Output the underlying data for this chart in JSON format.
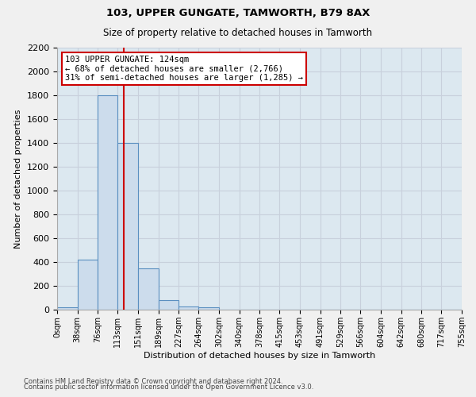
{
  "title1": "103, UPPER GUNGATE, TAMWORTH, B79 8AX",
  "title2": "Size of property relative to detached houses in Tamworth",
  "xlabel": "Distribution of detached houses by size in Tamworth",
  "ylabel": "Number of detached properties",
  "footnote1": "Contains HM Land Registry data © Crown copyright and database right 2024.",
  "footnote2": "Contains public sector information licensed under the Open Government Licence v3.0.",
  "bin_edges": [
    0,
    38,
    76,
    113,
    151,
    189,
    227,
    264,
    302,
    340,
    378,
    415,
    453,
    491,
    529,
    566,
    604,
    642,
    680,
    717,
    755
  ],
  "bar_heights": [
    20,
    420,
    1800,
    1400,
    350,
    80,
    30,
    20,
    0,
    0,
    0,
    0,
    0,
    0,
    0,
    0,
    0,
    0,
    0,
    0
  ],
  "bar_color": "#ccdcec",
  "bar_edge_color": "#5a8fc0",
  "grid_color": "#c8d0dc",
  "bg_color": "#dce8f0",
  "fig_bg_color": "#f0f0f0",
  "property_size": 124,
  "red_line_color": "#cc0000",
  "annotation_line1": "103 UPPER GUNGATE: 124sqm",
  "annotation_line2": "← 68% of detached houses are smaller (2,766)",
  "annotation_line3": "31% of semi-detached houses are larger (1,285) →",
  "annotation_box_color": "#cc0000",
  "ylim": [
    0,
    2200
  ],
  "yticks": [
    0,
    200,
    400,
    600,
    800,
    1000,
    1200,
    1400,
    1600,
    1800,
    2000,
    2200
  ]
}
